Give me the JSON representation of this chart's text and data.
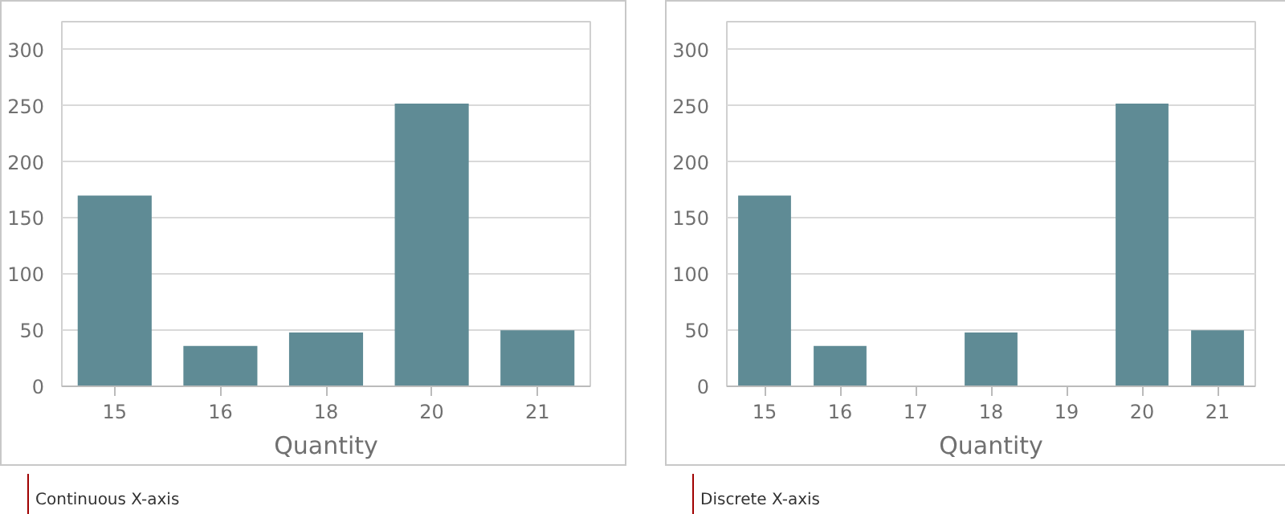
{
  "chart_data": [
    {
      "type": "bar",
      "xlabel": "Quantity",
      "categories": [
        "15",
        "16",
        "18",
        "20",
        "21"
      ],
      "values": [
        170,
        36,
        48,
        252,
        50
      ],
      "color": "#5f8b95",
      "ylim": [
        0,
        325
      ],
      "yticks": [
        0,
        50,
        100,
        150,
        200,
        250,
        300
      ],
      "grid": "y",
      "annotations": [
        "Continuous X-axis"
      ]
    },
    {
      "type": "bar",
      "xlabel": "Quantity",
      "categories": [
        "15",
        "16",
        "17",
        "18",
        "19",
        "20",
        "21"
      ],
      "values": [
        170,
        36,
        null,
        48,
        null,
        252,
        50
      ],
      "color": "#5f8b95",
      "ylim": [
        0,
        325
      ],
      "yticks": [
        0,
        50,
        100,
        150,
        200,
        250,
        300
      ],
      "grid": "y",
      "annotations": [
        "Discrete X-axis"
      ]
    }
  ]
}
